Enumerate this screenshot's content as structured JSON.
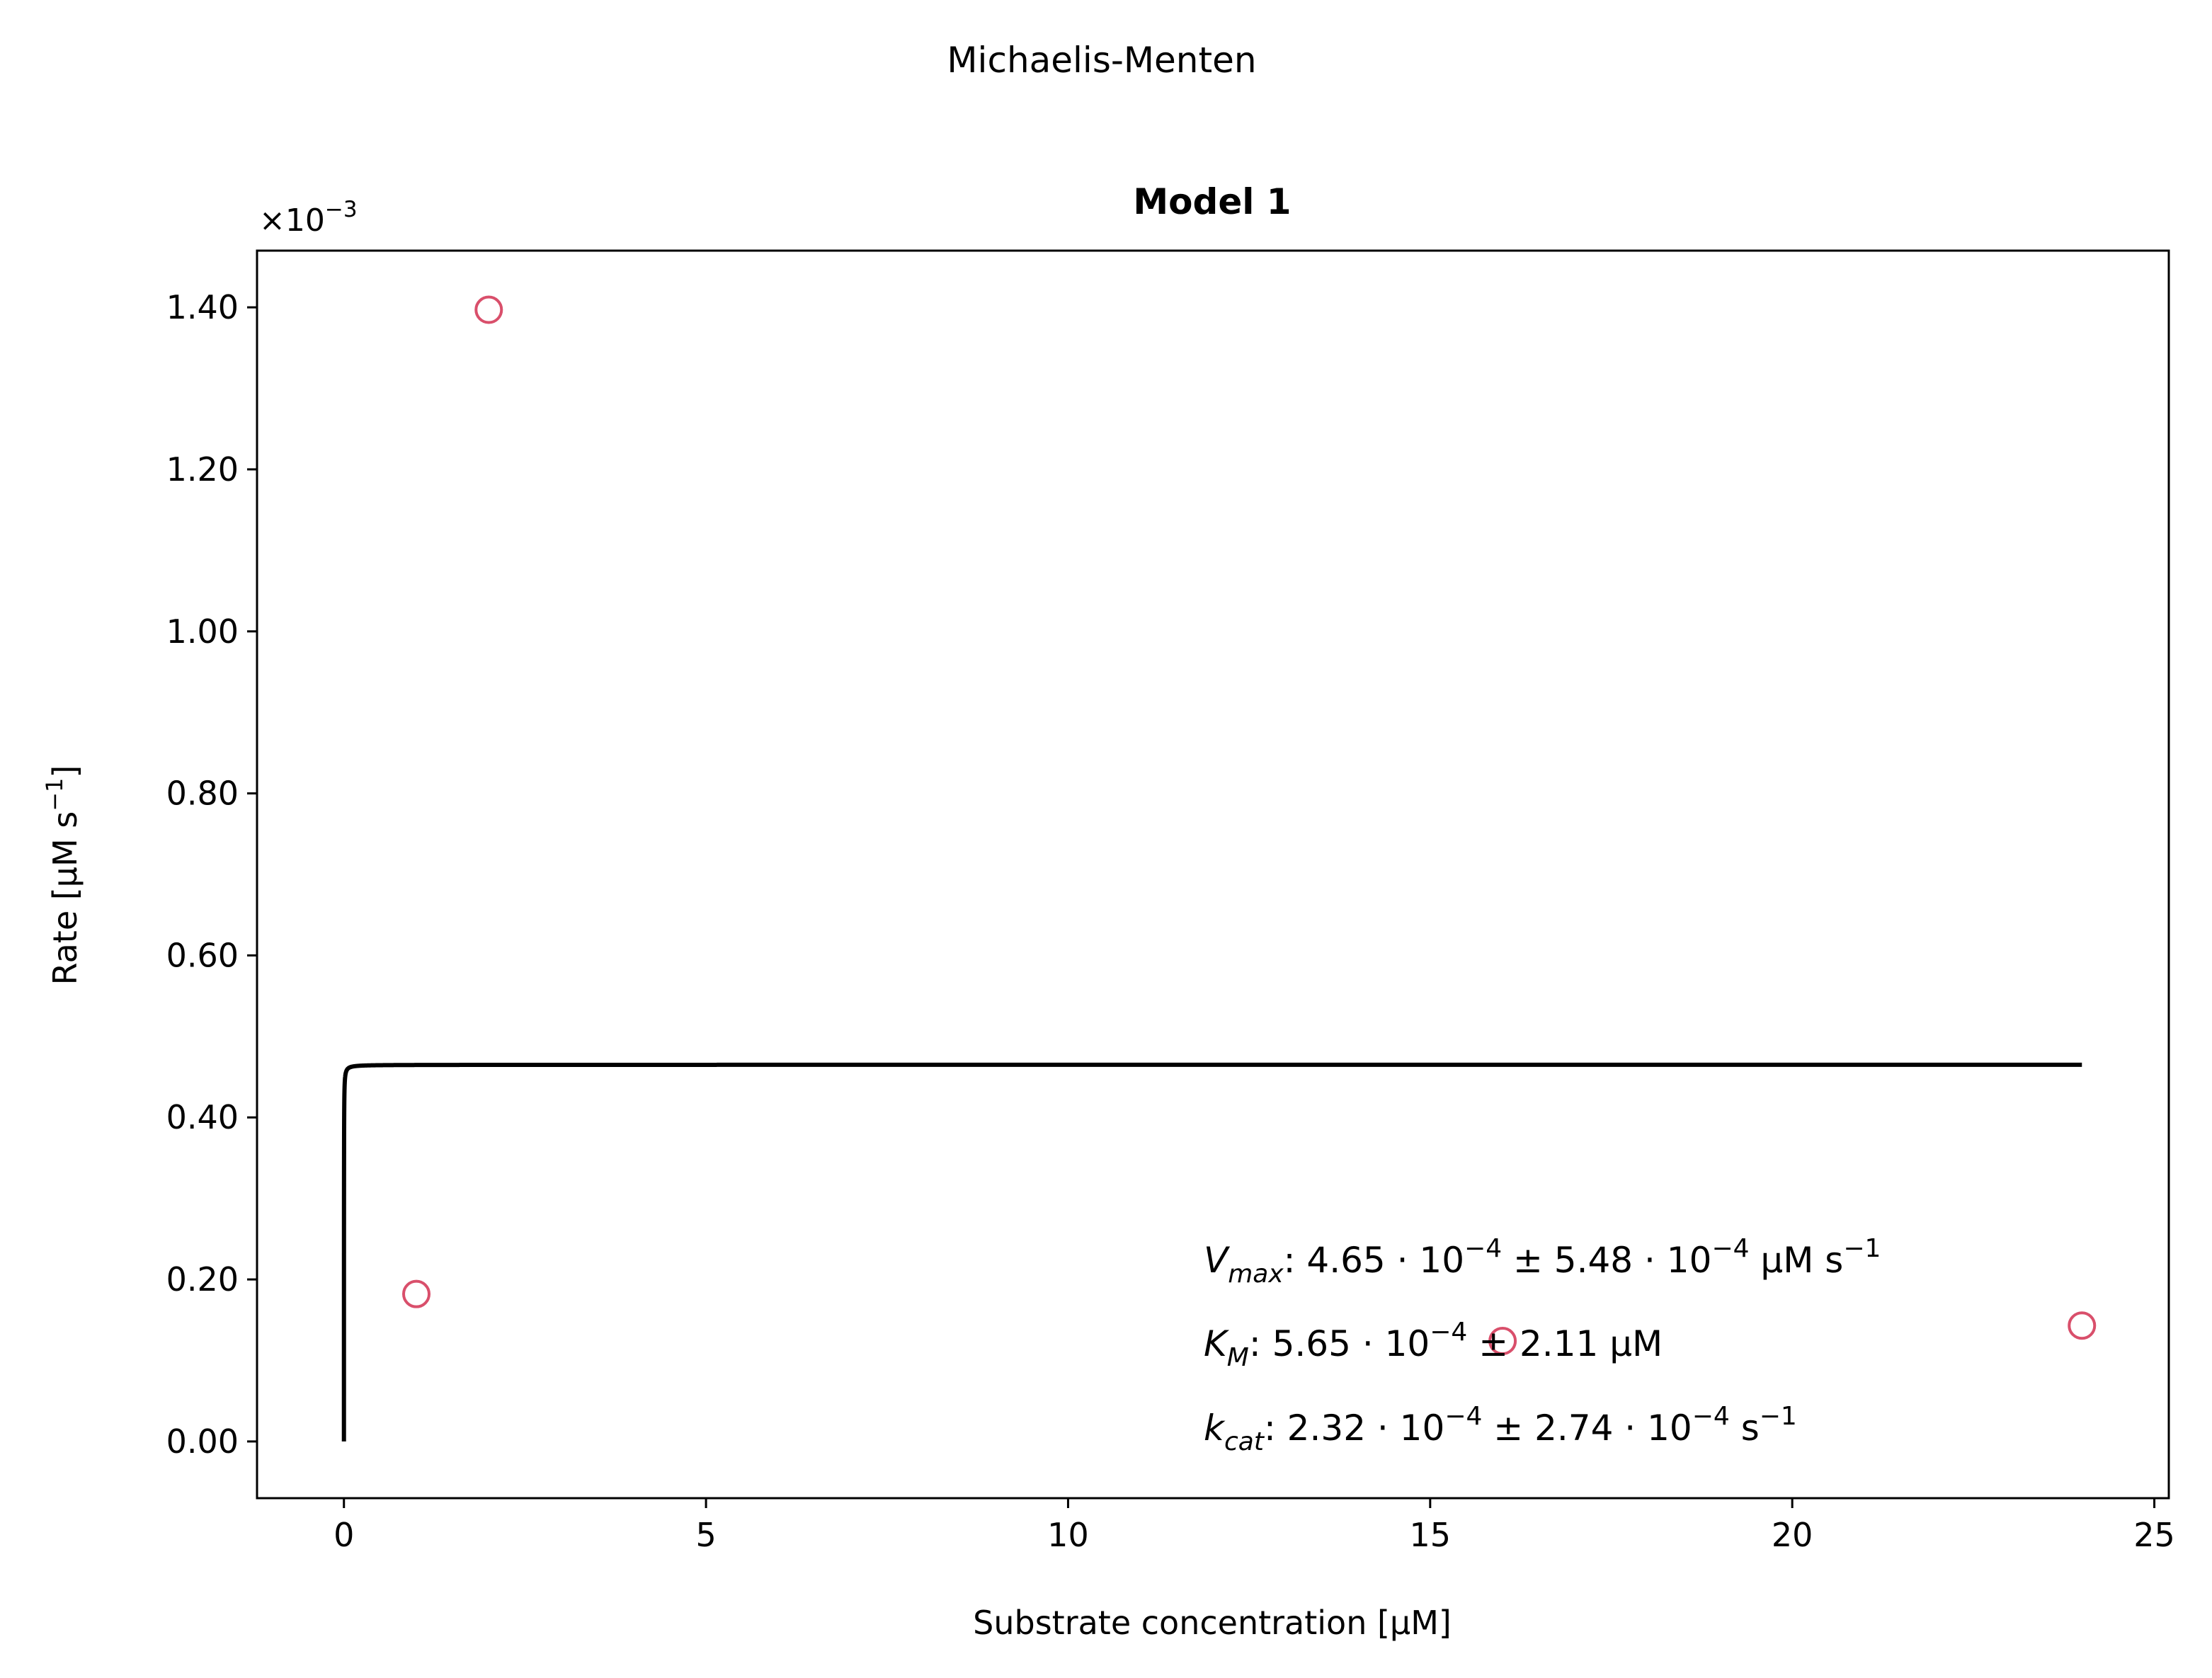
{
  "chart_data": {
    "type": "scatter",
    "suptitle": "Michaelis-Menten",
    "title": "Model 1",
    "xlabel": "Substrate concentration [μM]",
    "ylabel": {
      "main": "Rate [μM s",
      "sup": "−1",
      "tail": "]"
    },
    "y_offset_text": {
      "base": "×10",
      "exp": "−3"
    },
    "y_scale": 0.001,
    "xlim": [
      -1.2,
      25.2
    ],
    "ylim": [
      -0.07,
      1.47
    ],
    "xticks": [
      0,
      5,
      10,
      15,
      20,
      25
    ],
    "yticks": [
      0.0,
      0.2,
      0.4,
      0.6,
      0.8,
      1.0,
      1.2,
      1.4
    ],
    "ytick_labels": [
      "0.00",
      "0.20",
      "0.40",
      "0.60",
      "0.80",
      "1.00",
      "1.20",
      "1.40"
    ],
    "series": [
      {
        "kind": "scatter",
        "color": "#d94f6b",
        "marker": "open-circle",
        "points": [
          {
            "x": 1,
            "y": 0.182
          },
          {
            "x": 2,
            "y": 1.397
          },
          {
            "x": 16,
            "y": 0.124
          },
          {
            "x": 24,
            "y": 0.143
          }
        ]
      },
      {
        "kind": "fit-line",
        "color": "#000000",
        "model": "michaelis-menten",
        "vmax": 0.465,
        "km": 0.000565,
        "x_range": [
          0,
          24
        ]
      }
    ],
    "annotations": [
      {
        "sym": "V",
        "sub": "max",
        "rest": [
          [
            "t",
            ": 4.65 · 10"
          ],
          [
            "sup",
            "−4"
          ],
          [
            "t",
            " ± 5.48 · 10"
          ],
          [
            "sup",
            "−4"
          ],
          [
            "t",
            " μM s"
          ],
          [
            "sup",
            "−1"
          ]
        ]
      },
      {
        "sym": "K",
        "sub": "M",
        "rest": [
          [
            "t",
            ": 5.65 · 10"
          ],
          [
            "sup",
            "−4"
          ],
          [
            "t",
            " ± 2.11 μM"
          ]
        ]
      },
      {
        "sym": "k",
        "sub": "cat",
        "rest": [
          [
            "t",
            ": 2.32 · 10"
          ],
          [
            "sup",
            "−4"
          ],
          [
            "t",
            " ± 2.74 · 10"
          ],
          [
            "sup",
            "−4"
          ],
          [
            "t",
            " s"
          ],
          [
            "sup",
            "−1"
          ]
        ]
      }
    ],
    "grid": false,
    "legend": "none"
  }
}
